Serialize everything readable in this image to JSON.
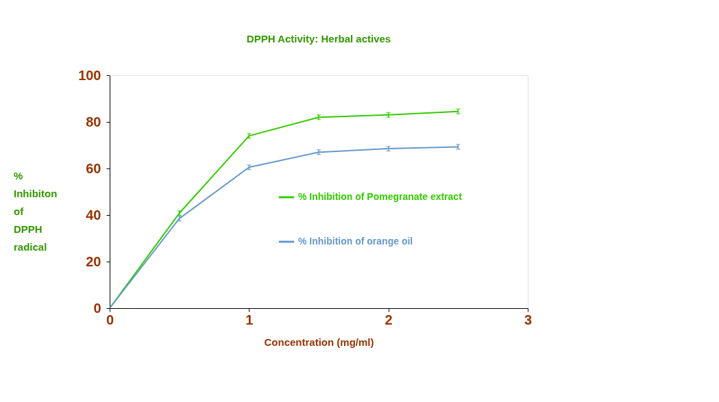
{
  "chart_data": {
    "type": "line",
    "title": "DPPH Activity: Herbal actives",
    "xlabel": "Concentration (mg/ml)",
    "ylabel": "% Inhibiton of DPPH radical",
    "x": [
      0,
      0.5,
      1,
      1.5,
      2,
      2.5
    ],
    "xlim": [
      0,
      3
    ],
    "xticks": [
      0,
      1,
      2,
      3
    ],
    "ylim": [
      0,
      100
    ],
    "yticks": [
      0,
      20,
      40,
      60,
      80,
      100
    ],
    "grid": false,
    "legend": "right",
    "marker": "none",
    "series": [
      {
        "name": "% Inhibition of Pomegranate extract",
        "color": "#33cc00",
        "values": [
          0,
          40.8,
          74,
          82,
          83,
          84.5
        ],
        "errors": [
          null,
          1,
          1,
          1,
          1,
          1
        ]
      },
      {
        "name": "% Inhibition of orange oil",
        "color": "#6699cc",
        "values": [
          0,
          38.5,
          60.5,
          67,
          68.5,
          69.3
        ],
        "errors": [
          null,
          1,
          1,
          1,
          1,
          1
        ]
      }
    ]
  }
}
